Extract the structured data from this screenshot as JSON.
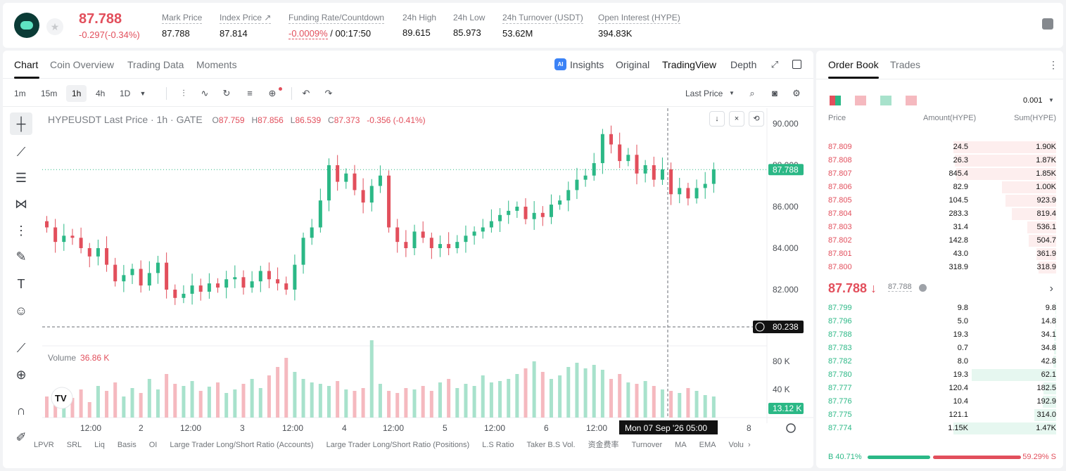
{
  "ticker": {
    "last_price": "87.788",
    "change": "-0.297(-0.34%)",
    "stats": [
      {
        "label": "Mark Price",
        "value": "87.788"
      },
      {
        "label": "Index Price ↗",
        "value": "87.814"
      },
      {
        "label": "Funding Rate/Countdown",
        "value_rate": "-0.0009%",
        "value_count": "/ 00:17:50"
      },
      {
        "label": "24h High",
        "value": "89.615"
      },
      {
        "label": "24h Low",
        "value": "85.973"
      },
      {
        "label": "24h Turnover (USDT)",
        "value": "53.62M"
      },
      {
        "label": "Open Interest (HYPE)",
        "value": "394.83K"
      }
    ]
  },
  "chart_tabs": [
    "Chart",
    "Coin Overview",
    "Trading Data",
    "Moments"
  ],
  "view_tabs": [
    "Insights",
    "Original",
    "TradingView",
    "Depth"
  ],
  "timeframes": [
    "1m",
    "15m",
    "1h",
    "4h",
    "1D"
  ],
  "price_type": "Last Price",
  "legend": {
    "symbol": "HYPEUSDT Last Price · 1h · GATE",
    "o": "87.759",
    "h": "87.856",
    "l": "86.539",
    "c": "87.373",
    "chg": "-0.356 (-0.41%)"
  },
  "volume": {
    "label": "Volume",
    "value": "36.86 K"
  },
  "price_axis": [
    "90.000",
    "88.000",
    "86.000",
    "84.000",
    "82.000"
  ],
  "price_tag": "87.788",
  "cross_price": "80.238",
  "volume_axis": [
    "80 K",
    "40 K"
  ],
  "volume_tag": "13.12 K",
  "time_axis": [
    "12:00",
    "2",
    "12:00",
    "3",
    "12:00",
    "4",
    "12:00",
    "5",
    "12:00",
    "6",
    "12:00",
    "8"
  ],
  "crosshair_time": "Mon 07 Sep '26   05:00",
  "bottom_indicators": [
    "LPVR",
    "SRL",
    "Liq",
    "Basis",
    "OI",
    "Large Trader Long/Short Ratio (Accounts)",
    "Large Trader Long/Short Ratio (Positions)",
    "L.S Ratio",
    "Taker B.S Vol.",
    "资金费率",
    "Turnover",
    "MA",
    "EMA",
    "Volu"
  ],
  "orderbook": {
    "tabs": [
      "Order Book",
      "Trades"
    ],
    "precision": "0.001",
    "headers": [
      "Price",
      "Amount(HYPE)",
      "Sum(HYPE)"
    ],
    "asks": [
      {
        "p": "87.809",
        "a": "24.5",
        "s": "1.90K",
        "depth": 1.0
      },
      {
        "p": "87.808",
        "a": "26.3",
        "s": "1.87K",
        "depth": 0.985
      },
      {
        "p": "87.807",
        "a": "845.4",
        "s": "1.85K",
        "depth": 0.97
      },
      {
        "p": "87.806",
        "a": "82.9",
        "s": "1.00K",
        "depth": 0.53
      },
      {
        "p": "87.805",
        "a": "104.5",
        "s": "923.9",
        "depth": 0.49
      },
      {
        "p": "87.804",
        "a": "283.3",
        "s": "819.4",
        "depth": 0.43
      },
      {
        "p": "87.803",
        "a": "31.4",
        "s": "536.1",
        "depth": 0.28
      },
      {
        "p": "87.802",
        "a": "142.8",
        "s": "504.7",
        "depth": 0.27
      },
      {
        "p": "87.801",
        "a": "43.0",
        "s": "361.9",
        "depth": 0.19
      },
      {
        "p": "87.800",
        "a": "318.9",
        "s": "318.9",
        "depth": 0.17
      }
    ],
    "mid_price": "87.788 ↓",
    "mark_price": "87.788",
    "bids": [
      {
        "p": "87.799",
        "a": "9.8",
        "s": "9.8",
        "depth": 0.007
      },
      {
        "p": "87.796",
        "a": "5.0",
        "s": "14.8",
        "depth": 0.01
      },
      {
        "p": "87.788",
        "a": "19.3",
        "s": "34.1",
        "depth": 0.023
      },
      {
        "p": "87.783",
        "a": "0.7",
        "s": "34.8",
        "depth": 0.024
      },
      {
        "p": "87.782",
        "a": "8.0",
        "s": "42.8",
        "depth": 0.03
      },
      {
        "p": "87.780",
        "a": "19.3",
        "s": "62.1",
        "depth": 0.04
      },
      {
        "p": "87.777",
        "a": "120.4",
        "s": "182.5",
        "depth": 0.12
      },
      {
        "p": "87.776",
        "a": "10.4",
        "s": "192.9",
        "depth": 0.13
      },
      {
        "p": "87.775",
        "a": "121.1",
        "s": "314.0",
        "depth": 0.21
      },
      {
        "p": "87.774",
        "a": "1.15K",
        "s": "1.47K",
        "depth": 1.0
      }
    ],
    "buy_ratio": "B 40.71%",
    "sell_ratio": "59.29% S",
    "buy_fraction": 0.4071
  },
  "colors": {
    "up": "#2bb886",
    "down": "#e24f5c"
  }
}
